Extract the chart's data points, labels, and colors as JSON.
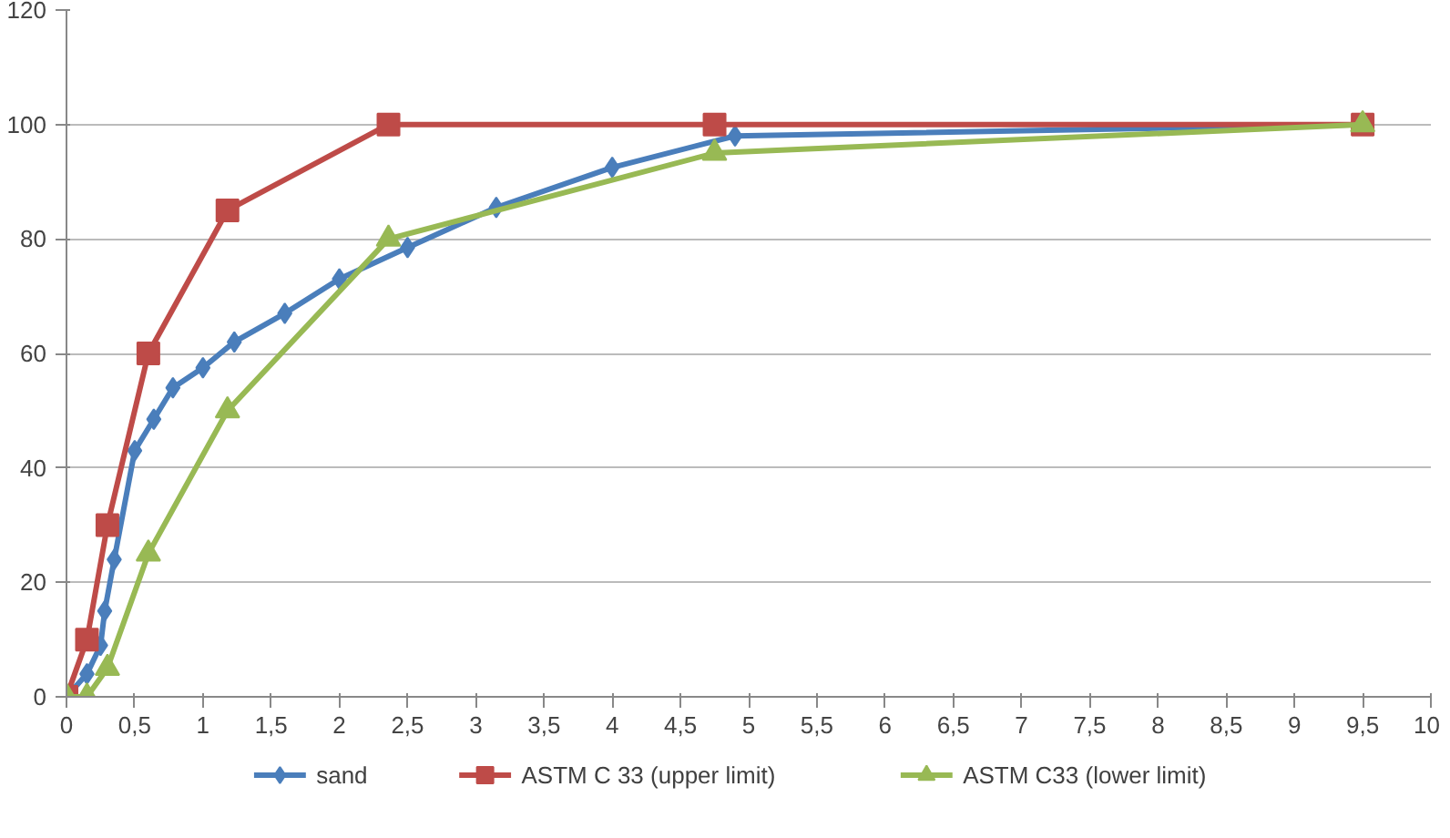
{
  "chart_data": {
    "type": "line",
    "xlim": [
      0,
      10
    ],
    "ylim": [
      0,
      120
    ],
    "xticks": [
      0,
      {
        "value": 0.5,
        "label": "0,5"
      },
      1,
      {
        "value": 1.5,
        "label": "1,5"
      },
      2,
      {
        "value": 2.5,
        "label": "2,5"
      },
      3,
      {
        "value": 3.5,
        "label": "3,5"
      },
      4,
      {
        "value": 4.5,
        "label": "4,5"
      },
      5,
      {
        "value": 5.5,
        "label": "5,5"
      },
      6,
      {
        "value": 6.5,
        "label": "6,5"
      },
      7,
      {
        "value": 7.5,
        "label": "7,5"
      },
      8,
      {
        "value": 8.5,
        "label": "8,5"
      },
      9,
      {
        "value": 9.5,
        "label": "9,5"
      },
      10
    ],
    "yticks": [
      0,
      20,
      40,
      60,
      80,
      100,
      120
    ],
    "grid": "y",
    "legend": "bottom",
    "series": [
      {
        "name": "sand",
        "color": "#4a7ebb",
        "marker": "diamond",
        "x": [
          0,
          0.15,
          0.25,
          0.28,
          0.35,
          0.5,
          0.64,
          0.78,
          1.0,
          1.23,
          1.6,
          2.0,
          2.5,
          3.15,
          4.0,
          4.9,
          9.5
        ],
        "values": [
          0,
          4,
          9,
          15,
          24,
          43,
          48.5,
          54,
          57.5,
          62,
          67,
          73,
          78.5,
          85.5,
          92.5,
          98,
          100
        ]
      },
      {
        "name": "ASTM C 33 (upper limit)",
        "color": "#be4b48",
        "marker": "square",
        "x": [
          0,
          0.15,
          0.3,
          0.6,
          1.18,
          2.36,
          4.75,
          9.5
        ],
        "values": [
          0,
          10,
          30,
          60,
          85,
          100,
          100,
          100
        ]
      },
      {
        "name": "ASTM C33 (lower limit)",
        "color": "#98b954",
        "marker": "triangle",
        "x": [
          0,
          0.15,
          0.3,
          0.6,
          1.18,
          2.36,
          4.75,
          9.5
        ],
        "values": [
          0,
          0,
          5,
          25,
          50,
          80,
          95,
          100
        ]
      }
    ]
  }
}
